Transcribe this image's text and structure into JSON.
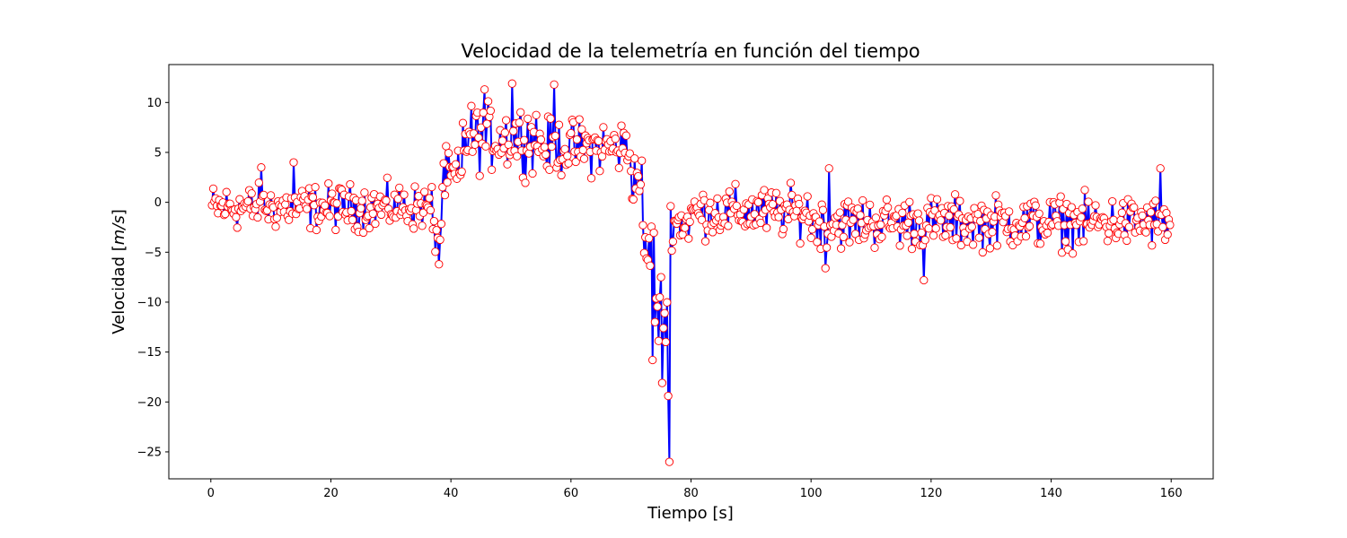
{
  "chart_data": {
    "type": "scatter",
    "title": "Velocidad de la telemetría en función del tiempo",
    "xlabel": "Tiempo [s]",
    "ylabel_prefix": "Velocidad [",
    "ylabel_unit": "m/s",
    "ylabel_suffix": "]",
    "xlim": [
      -7,
      167
    ],
    "ylim": [
      -27.7,
      13.8
    ],
    "xticks": [
      0,
      20,
      40,
      60,
      80,
      100,
      120,
      140,
      160
    ],
    "yticks": [
      10,
      5,
      0,
      -5,
      -10,
      -15,
      -20,
      -25
    ],
    "ytick_labels": [
      "10",
      "5",
      "0",
      "−5",
      "−10",
      "−15",
      "−20",
      "−25"
    ],
    "grid": false,
    "style": {
      "line_color": "#0000ff",
      "marker_edge_color": "#ff0000",
      "marker_face_color": "#ffffff"
    },
    "sample_interval_s": 0.2,
    "x_start": 0.2,
    "x_end": 159.8,
    "segments": [
      {
        "x0": 0,
        "x1": 37,
        "mean": -0.5,
        "spread": 2.2
      },
      {
        "x0": 37,
        "x1": 38.5,
        "mean": -3.0,
        "spread": 2.0
      },
      {
        "x0": 38.5,
        "x1": 42,
        "mean": 2.5,
        "spread": 2.6
      },
      {
        "x0": 42,
        "x1": 55,
        "mean": 6.5,
        "spread": 3.2
      },
      {
        "x0": 55,
        "x1": 70,
        "mean": 5.5,
        "spread": 2.7
      },
      {
        "x0": 70,
        "x1": 72,
        "mean": 2.5,
        "spread": 2.4
      },
      {
        "x0": 72,
        "x1": 74,
        "mean": -5.0,
        "spread": 3.5
      },
      {
        "x0": 74,
        "x1": 76.5,
        "mean": -11.0,
        "spread": 4.0
      },
      {
        "x0": 76.5,
        "x1": 80,
        "mean": -2.0,
        "spread": 2.2
      },
      {
        "x0": 80,
        "x1": 100,
        "mean": -1.0,
        "spread": 2.4
      },
      {
        "x0": 100,
        "x1": 160,
        "mean": -2.0,
        "spread": 2.5
      }
    ],
    "notable_points": [
      {
        "x": 76.4,
        "y": -26.0
      },
      {
        "x": 76.2,
        "y": -19.4
      },
      {
        "x": 75.2,
        "y": -18.1
      },
      {
        "x": 73.6,
        "y": -15.8
      },
      {
        "x": 50.2,
        "y": 11.9
      },
      {
        "x": 57.2,
        "y": 11.8
      },
      {
        "x": 45.6,
        "y": 11.3
      },
      {
        "x": 118.8,
        "y": -7.8
      },
      {
        "x": 102.4,
        "y": -6.6
      },
      {
        "x": 38.0,
        "y": -6.2
      },
      {
        "x": 103.0,
        "y": 3.4
      },
      {
        "x": 158.2,
        "y": 3.4
      },
      {
        "x": 13.8,
        "y": 4.0
      },
      {
        "x": 8.4,
        "y": 3.5
      }
    ]
  }
}
